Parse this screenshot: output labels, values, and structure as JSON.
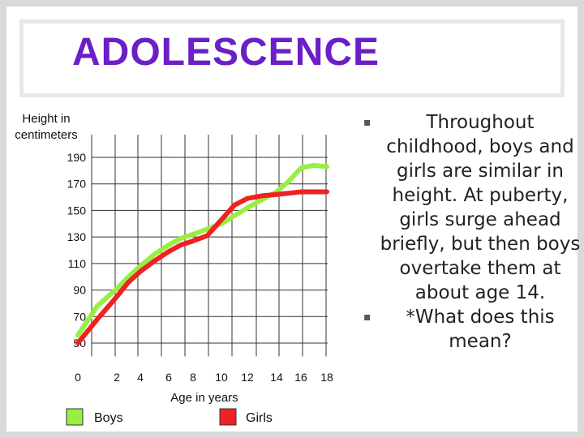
{
  "slide": {
    "title": "ADOLESCENCE",
    "bullets": [
      "Throughout childhood, boys and girls are similar in height. At puberty, girls surge ahead briefly, but then boys overtake them at about age 14.",
      "*What does this mean?"
    ],
    "bullet_icon": "square-bullet-icon"
  },
  "chart_data": {
    "type": "line",
    "ylabel": "Height in centimeters",
    "xlabel": "Age in years",
    "x_ticks": [
      0,
      2,
      4,
      6,
      8,
      10,
      12,
      14,
      16,
      18
    ],
    "x_tick_labels": [
      "0",
      "2",
      "4",
      "6",
      "8",
      "10",
      "12",
      "14",
      "16",
      "18"
    ],
    "y_ticks": [
      50,
      70,
      90,
      110,
      130,
      150,
      170,
      190
    ],
    "y_tick_labels": [
      "50",
      "70",
      "90",
      "110",
      "130",
      "150",
      "170",
      "190"
    ],
    "xlim": [
      0,
      18
    ],
    "ylim": [
      40,
      200
    ],
    "grid": true,
    "legend_position": "bottom",
    "series": [
      {
        "name": "Boys",
        "color": "#99ee44",
        "x": [
          0,
          1,
          2,
          3,
          4,
          5,
          6,
          7,
          8,
          9,
          10,
          11,
          12,
          13,
          14,
          15,
          16,
          17,
          18
        ],
        "y": [
          56,
          78,
          91,
          100,
          108,
          117,
          124,
          129,
          132,
          136,
          140,
          146,
          152,
          158,
          164,
          172,
          182,
          184,
          183
        ]
      },
      {
        "name": "Girls",
        "color": "#ee2222",
        "x": [
          0,
          1,
          2,
          3,
          4,
          5,
          6,
          7,
          8,
          9,
          10,
          11,
          12,
          13,
          14,
          15,
          16,
          17,
          18
        ],
        "y": [
          50,
          68,
          85,
          96,
          104,
          112,
          119,
          124,
          127,
          131,
          143,
          154,
          159,
          161,
          162,
          163,
          164,
          164,
          164
        ]
      }
    ]
  }
}
